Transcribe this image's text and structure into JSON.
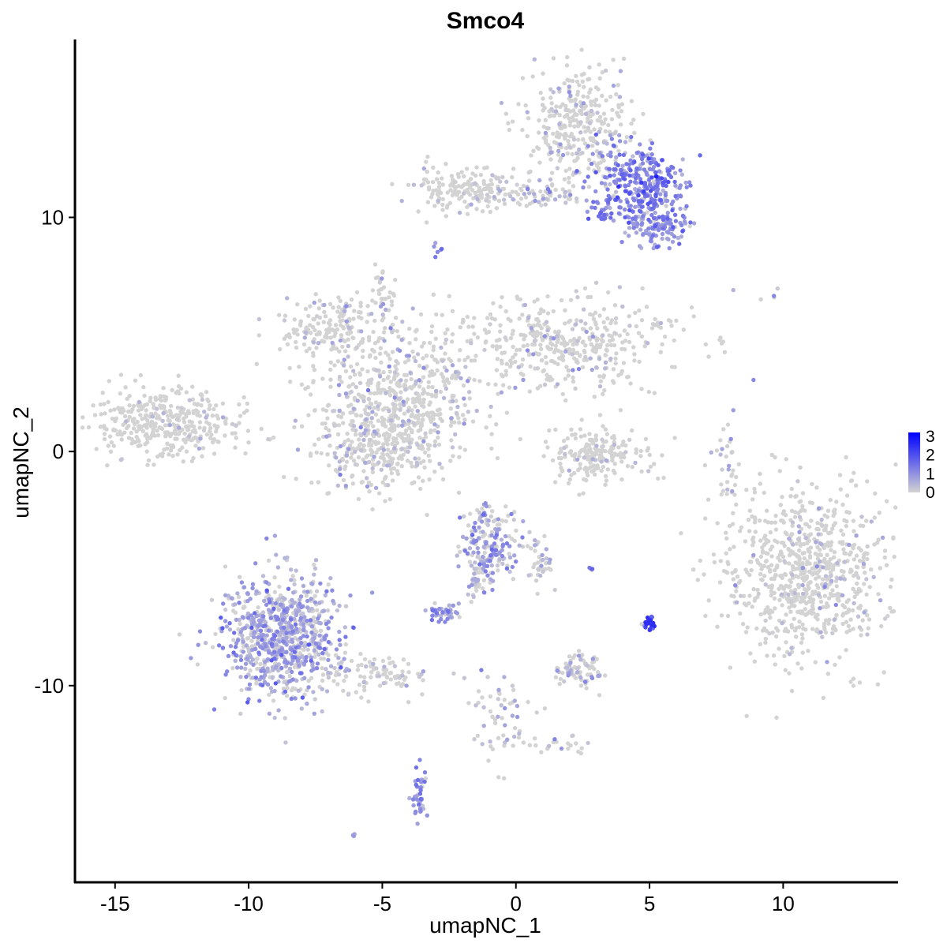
{
  "chart_data": {
    "type": "scatter",
    "title": "Smco4",
    "xlabel": "umapNC_1",
    "ylabel": "umapNC_2",
    "xlim": [
      -16.5,
      14.3
    ],
    "ylim": [
      -18.4,
      17.6
    ],
    "xticks": [
      -15,
      -10,
      -5,
      0,
      5,
      10
    ],
    "xtick_labels": [
      "-15",
      "-10",
      "-5",
      "0",
      "5",
      "10"
    ],
    "yticks": [
      -10,
      0,
      10
    ],
    "ytick_labels": [
      "-10",
      "0",
      "10"
    ],
    "grid": false,
    "legend_position": "right",
    "color_scale": {
      "name": "expression",
      "min": 0,
      "max": 3.2,
      "low_color": "#d3d3d3",
      "high_color": "#0000ff",
      "ticks": [
        0,
        1,
        2,
        3
      ],
      "tick_labels": [
        "0",
        "1",
        "2",
        "3"
      ]
    },
    "clusters": [
      {
        "name": "far-left",
        "cx": -13.0,
        "cy": 1.2,
        "sx": 1.4,
        "sy": 0.75,
        "n": 380,
        "expr": 0.02,
        "expr_max": 0.6
      },
      {
        "name": "center-star-hub",
        "cx": -4.2,
        "cy": 2.4,
        "sx": 1.6,
        "sy": 1.5,
        "n": 520,
        "expr": 0.18,
        "expr_max": 1.4
      },
      {
        "name": "center-star-left-arm",
        "cx": -6.8,
        "cy": 5.3,
        "sx": 1.0,
        "sy": 0.6,
        "n": 180,
        "expr": 0.18,
        "expr_max": 1.3
      },
      {
        "name": "center-star-right-arm",
        "cx": 2.0,
        "cy": 4.6,
        "sx": 2.0,
        "sy": 1.0,
        "n": 420,
        "expr": 0.12,
        "expr_max": 1.2
      },
      {
        "name": "center-star-lower-lobe",
        "cx": -5.2,
        "cy": 0.3,
        "sx": 1.2,
        "sy": 1.0,
        "n": 300,
        "expr": 0.15,
        "expr_max": 1.3
      },
      {
        "name": "center-star-top",
        "cx": -5.0,
        "cy": 7.0,
        "sx": 0.2,
        "sy": 0.5,
        "n": 25,
        "expr": 0.3,
        "expr_max": 1.2
      },
      {
        "name": "top-left-wing",
        "cx": -2.0,
        "cy": 11.2,
        "sx": 1.0,
        "sy": 0.5,
        "n": 150,
        "expr": 0.05,
        "expr_max": 0.8
      },
      {
        "name": "top-bridge",
        "cx": 0.6,
        "cy": 11.0,
        "sx": 1.0,
        "sy": 0.3,
        "n": 80,
        "expr": 0.3,
        "expr_max": 1.3
      },
      {
        "name": "top-right-upper",
        "cx": 2.3,
        "cy": 14.0,
        "sx": 1.0,
        "sy": 1.2,
        "n": 320,
        "expr": 0.15,
        "expr_max": 1.5
      },
      {
        "name": "top-right-core",
        "cx": 4.6,
        "cy": 11.4,
        "sx": 0.9,
        "sy": 0.8,
        "n": 320,
        "expr": 1.2,
        "expr_max": 3.2
      },
      {
        "name": "top-right-lower",
        "cx": 5.3,
        "cy": 9.7,
        "sx": 0.6,
        "sy": 0.45,
        "n": 140,
        "expr": 1.0,
        "expr_max": 2.0
      },
      {
        "name": "top-right-small",
        "cx": 3.2,
        "cy": 10.1,
        "sx": 0.2,
        "sy": 0.15,
        "n": 15,
        "expr": 1.3,
        "expr_max": 2.0
      },
      {
        "name": "top-pendant",
        "cx": -2.9,
        "cy": 8.6,
        "sx": 0.1,
        "sy": 0.2,
        "n": 6,
        "expr": 1.2,
        "expr_max": 1.8
      },
      {
        "name": "center-arc",
        "cx": 3.0,
        "cy": -0.2,
        "sx": 1.0,
        "sy": 0.6,
        "n": 200,
        "expr": 0.03,
        "expr_max": 0.6
      },
      {
        "name": "right-streak",
        "cx": 8.0,
        "cy": -0.3,
        "sx": 0.25,
        "sy": 0.9,
        "n": 30,
        "expr": 0.4,
        "expr_max": 1.0
      },
      {
        "name": "right-large",
        "cx": 10.8,
        "cy": -5.2,
        "sx": 1.5,
        "sy": 1.8,
        "n": 800,
        "expr": 0.08,
        "expr_max": 1.6
      },
      {
        "name": "bottom-left-large",
        "cx": -8.8,
        "cy": -8.0,
        "sx": 1.1,
        "sy": 1.3,
        "n": 800,
        "expr": 0.7,
        "expr_max": 1.8
      },
      {
        "name": "bottom-left-tail",
        "cx": -5.3,
        "cy": -9.5,
        "sx": 1.1,
        "sy": 0.45,
        "n": 100,
        "expr": 0.2,
        "expr_max": 1.2
      },
      {
        "name": "bottom-center-upper",
        "cx": -1.0,
        "cy": -3.9,
        "sx": 0.5,
        "sy": 0.8,
        "n": 170,
        "expr": 0.7,
        "expr_max": 1.6
      },
      {
        "name": "bottom-center-arm",
        "cx": -1.5,
        "cy": -5.5,
        "sx": 0.3,
        "sy": 0.6,
        "n": 40,
        "expr": 0.6,
        "expr_max": 1.5
      },
      {
        "name": "bottom-center-right",
        "cx": 0.8,
        "cy": -4.8,
        "sx": 0.3,
        "sy": 0.5,
        "n": 40,
        "expr": 0.3,
        "expr_max": 1.2
      },
      {
        "name": "bottom-center-small",
        "cx": -2.7,
        "cy": -6.9,
        "sx": 0.3,
        "sy": 0.2,
        "n": 40,
        "expr": 0.9,
        "expr_max": 1.5
      },
      {
        "name": "bottom-right-cluster",
        "cx": 2.3,
        "cy": -9.3,
        "sx": 0.5,
        "sy": 0.4,
        "n": 80,
        "expr": 0.4,
        "expr_max": 1.4
      },
      {
        "name": "bright-purple-cluster",
        "cx": 5.0,
        "cy": -7.4,
        "sx": 0.1,
        "sy": 0.18,
        "n": 25,
        "expr": 2.0,
        "expr_max": 2.5
      },
      {
        "name": "small-dash",
        "cx": 2.8,
        "cy": -5.0,
        "sx": 0.1,
        "sy": 0.05,
        "n": 5,
        "expr": 1.5,
        "expr_max": 2.0
      },
      {
        "name": "bottom-trail",
        "cx": -0.5,
        "cy": -11.5,
        "sx": 0.6,
        "sy": 1.0,
        "n": 60,
        "expr": 0.3,
        "expr_max": 1.3
      },
      {
        "name": "bottom-trail-right",
        "cx": 1.8,
        "cy": -12.5,
        "sx": 0.5,
        "sy": 0.2,
        "n": 20,
        "expr": 0.3,
        "expr_max": 1.2
      },
      {
        "name": "bottom-streak",
        "cx": -3.6,
        "cy": -14.8,
        "sx": 0.15,
        "sy": 0.6,
        "n": 40,
        "expr": 1.0,
        "expr_max": 1.5
      },
      {
        "name": "bottom-tiny",
        "cx": -6.1,
        "cy": -16.4,
        "sx": 0.05,
        "sy": 0.05,
        "n": 4,
        "expr": 1.0,
        "expr_max": 1.4
      },
      {
        "name": "isolated-top-right",
        "cx": 9.0,
        "cy": 6.7,
        "sx": 0.6,
        "sy": 0.15,
        "n": 5,
        "expr": 0.5,
        "expr_max": 1.5
      },
      {
        "name": "isolated-mid-right",
        "cx": 7.7,
        "cy": 4.7,
        "sx": 0.05,
        "sy": 0.1,
        "n": 3,
        "expr": 0.1,
        "expr_max": 0.5
      }
    ]
  }
}
